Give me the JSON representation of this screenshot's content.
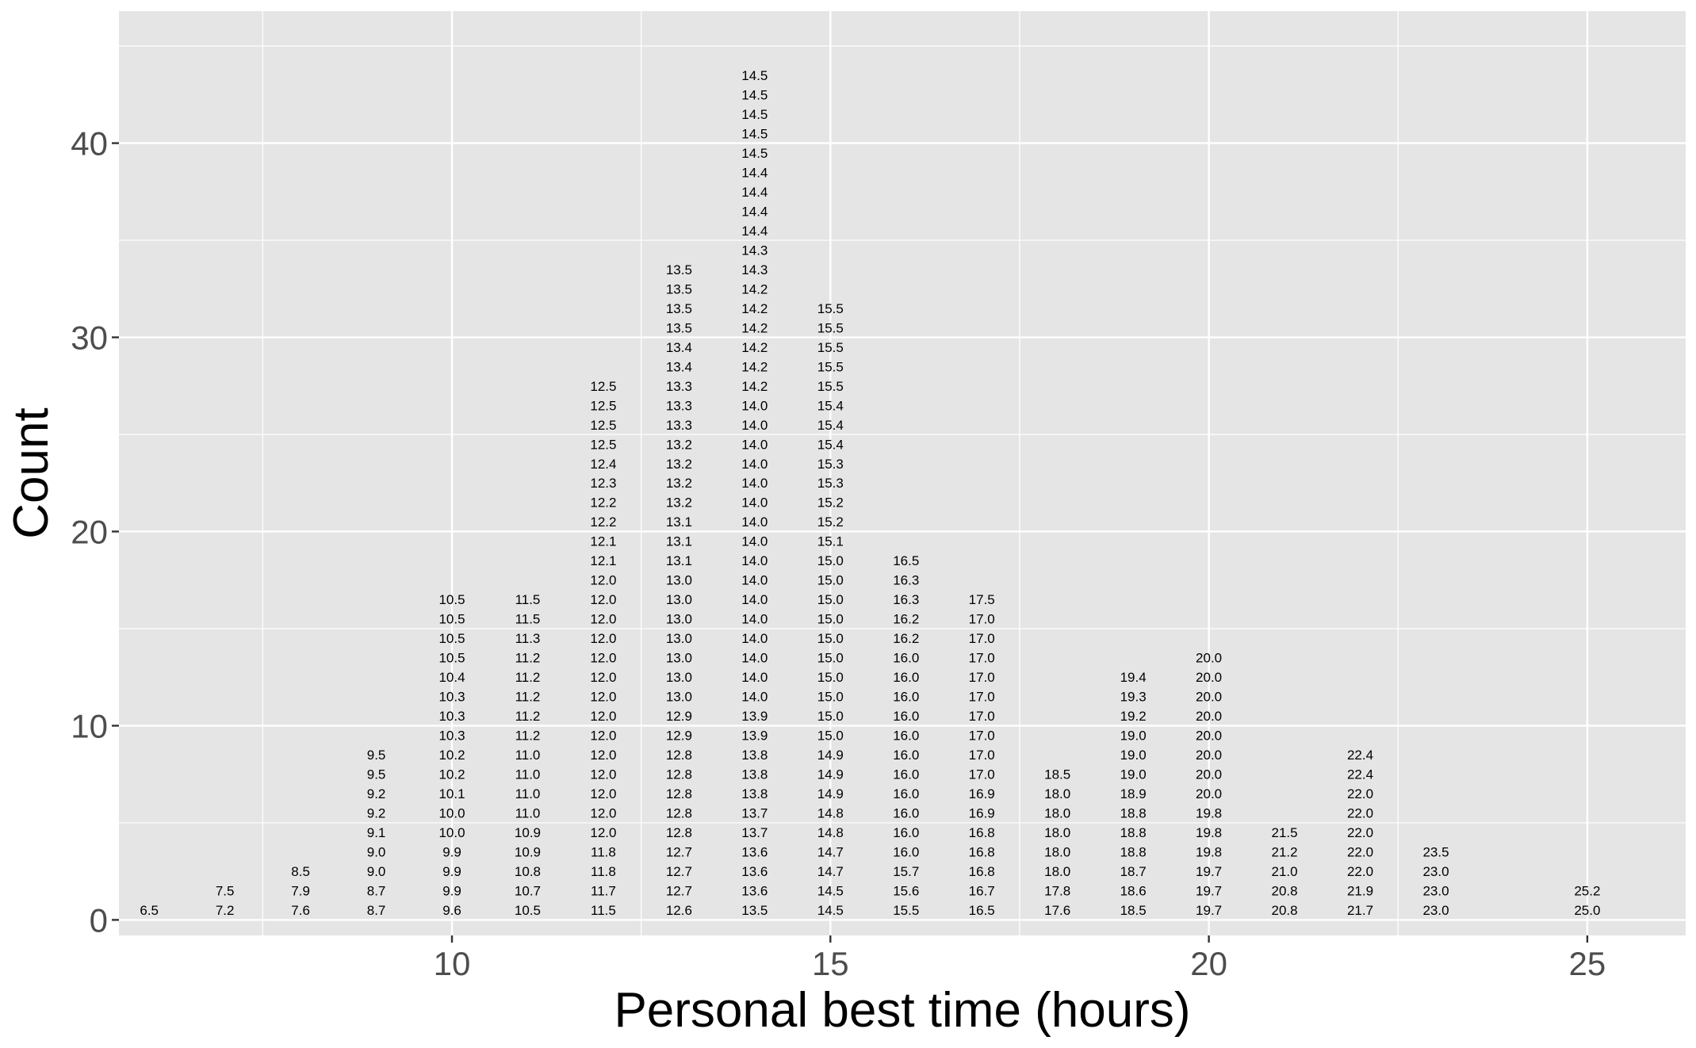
{
  "chart_data": {
    "type": "dotplot",
    "xlabel": "Personal best time (hours)",
    "ylabel": "Count",
    "xlim": [
      5.6,
      26.3
    ],
    "ylim": [
      -0.8,
      46.8
    ],
    "x_ticks": [
      10,
      15,
      20,
      25
    ],
    "y_ticks": [
      0,
      10,
      20,
      30,
      40
    ],
    "grid": true,
    "panel_background": "#e5e5e5",
    "columns": [
      {
        "x": 6,
        "labels": [
          "6.5"
        ]
      },
      {
        "x": 7,
        "labels": [
          "7.2",
          "7.5"
        ]
      },
      {
        "x": 8,
        "labels": [
          "7.6",
          "7.9",
          "8.5"
        ]
      },
      {
        "x": 9,
        "labels": [
          "8.7",
          "8.7",
          "9.0",
          "9.0",
          "9.1",
          "9.2",
          "9.2",
          "9.5",
          "9.5"
        ]
      },
      {
        "x": 10,
        "labels": [
          "9.6",
          "9.9",
          "9.9",
          "9.9",
          "10.0",
          "10.0",
          "10.1",
          "10.2",
          "10.2",
          "10.3",
          "10.3",
          "10.3",
          "10.4",
          "10.5",
          "10.5",
          "10.5",
          "10.5"
        ]
      },
      {
        "x": 11,
        "labels": [
          "10.5",
          "10.7",
          "10.8",
          "10.9",
          "10.9",
          "11.0",
          "11.0",
          "11.0",
          "11.0",
          "11.2",
          "11.2",
          "11.2",
          "11.2",
          "11.2",
          "11.3",
          "11.5",
          "11.5"
        ]
      },
      {
        "x": 12,
        "labels": [
          "11.5",
          "11.7",
          "11.8",
          "11.8",
          "12.0",
          "12.0",
          "12.0",
          "12.0",
          "12.0",
          "12.0",
          "12.0",
          "12.0",
          "12.0",
          "12.0",
          "12.0",
          "12.0",
          "12.0",
          "12.0",
          "12.1",
          "12.1",
          "12.2",
          "12.2",
          "12.3",
          "12.4",
          "12.5",
          "12.5",
          "12.5",
          "12.5"
        ]
      },
      {
        "x": 13,
        "labels": [
          "12.6",
          "12.7",
          "12.7",
          "12.7",
          "12.8",
          "12.8",
          "12.8",
          "12.8",
          "12.8",
          "12.9",
          "12.9",
          "13.0",
          "13.0",
          "13.0",
          "13.0",
          "13.0",
          "13.0",
          "13.0",
          "13.1",
          "13.1",
          "13.1",
          "13.2",
          "13.2",
          "13.2",
          "13.2",
          "13.3",
          "13.3",
          "13.3",
          "13.4",
          "13.4",
          "13.5",
          "13.5",
          "13.5",
          "13.5"
        ]
      },
      {
        "x": 14,
        "labels": [
          "13.5",
          "13.6",
          "13.6",
          "13.6",
          "13.7",
          "13.7",
          "13.8",
          "13.8",
          "13.8",
          "13.9",
          "13.9",
          "14.0",
          "14.0",
          "14.0",
          "14.0",
          "14.0",
          "14.0",
          "14.0",
          "14.0",
          "14.0",
          "14.0",
          "14.0",
          "14.0",
          "14.0",
          "14.0",
          "14.0",
          "14.0",
          "14.2",
          "14.2",
          "14.2",
          "14.2",
          "14.2",
          "14.2",
          "14.3",
          "14.3",
          "14.4",
          "14.4",
          "14.4",
          "14.4",
          "14.5",
          "14.5",
          "14.5",
          "14.5",
          "14.5"
        ]
      },
      {
        "x": 15,
        "labels": [
          "14.5",
          "14.5",
          "14.7",
          "14.7",
          "14.8",
          "14.8",
          "14.9",
          "14.9",
          "14.9",
          "15.0",
          "15.0",
          "15.0",
          "15.0",
          "15.0",
          "15.0",
          "15.0",
          "15.0",
          "15.0",
          "15.0",
          "15.1",
          "15.2",
          "15.2",
          "15.3",
          "15.3",
          "15.4",
          "15.4",
          "15.4",
          "15.5",
          "15.5",
          "15.5",
          "15.5",
          "15.5"
        ]
      },
      {
        "x": 16,
        "labels": [
          "15.5",
          "15.6",
          "15.7",
          "16.0",
          "16.0",
          "16.0",
          "16.0",
          "16.0",
          "16.0",
          "16.0",
          "16.0",
          "16.0",
          "16.0",
          "16.0",
          "16.2",
          "16.2",
          "16.3",
          "16.3",
          "16.5"
        ]
      },
      {
        "x": 17,
        "labels": [
          "16.5",
          "16.7",
          "16.8",
          "16.8",
          "16.8",
          "16.9",
          "16.9",
          "17.0",
          "17.0",
          "17.0",
          "17.0",
          "17.0",
          "17.0",
          "17.0",
          "17.0",
          "17.0",
          "17.5"
        ]
      },
      {
        "x": 18,
        "labels": [
          "17.6",
          "17.8",
          "18.0",
          "18.0",
          "18.0",
          "18.0",
          "18.0",
          "18.5"
        ]
      },
      {
        "x": 19,
        "labels": [
          "18.5",
          "18.6",
          "18.7",
          "18.8",
          "18.8",
          "18.8",
          "18.9",
          "19.0",
          "19.0",
          "19.0",
          "19.2",
          "19.3",
          "19.4"
        ]
      },
      {
        "x": 20,
        "labels": [
          "19.7",
          "19.7",
          "19.7",
          "19.8",
          "19.8",
          "19.8",
          "20.0",
          "20.0",
          "20.0",
          "20.0",
          "20.0",
          "20.0",
          "20.0",
          "20.0"
        ]
      },
      {
        "x": 21,
        "labels": [
          "20.8",
          "20.8",
          "21.0",
          "21.2",
          "21.5"
        ]
      },
      {
        "x": 22,
        "labels": [
          "21.7",
          "21.9",
          "22.0",
          "22.0",
          "22.0",
          "22.0",
          "22.0",
          "22.4",
          "22.4"
        ]
      },
      {
        "x": 23,
        "labels": [
          "23.0",
          "23.0",
          "23.0",
          "23.5"
        ]
      },
      {
        "x": 25,
        "labels": [
          "25.0",
          "25.2"
        ]
      }
    ]
  }
}
